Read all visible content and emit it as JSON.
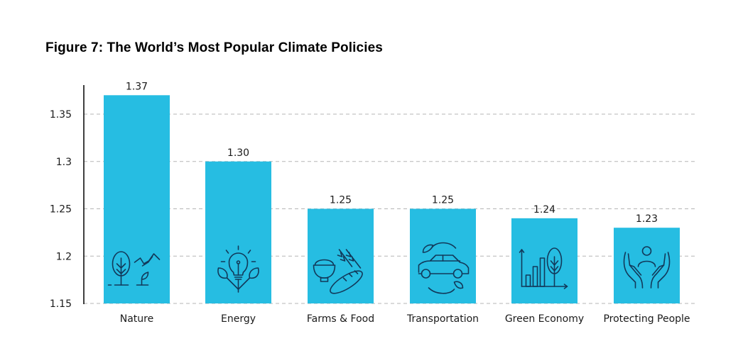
{
  "chart_data": {
    "type": "bar",
    "title": "Figure 7: The World’s Most Popular Climate Policies",
    "xlabel": "",
    "ylabel": "",
    "categories": [
      "Nature",
      "Energy",
      "Farms & Food",
      "Transportation",
      "Green Economy",
      "Protecting People"
    ],
    "values": [
      1.37,
      1.3,
      1.25,
      1.25,
      1.24,
      1.23
    ],
    "value_labels": [
      "1.37",
      "1.30",
      "1.25",
      "1.25",
      "1.24",
      "1.23"
    ],
    "icons": [
      "nature-tree-mountain-icon",
      "energy-lightbulb-leaves-icon",
      "farms-food-bowl-wheat-bread-icon",
      "transportation-car-leaves-icon",
      "green-economy-chart-tree-icon",
      "protecting-people-hands-person-icon"
    ],
    "ylim": [
      1.15,
      1.37
    ],
    "yticks": [
      1.15,
      1.2,
      1.25,
      1.3,
      1.35
    ],
    "ytick_labels": [
      "1.15",
      "1.2",
      "1.25",
      "1.3",
      "1.35"
    ],
    "grid": true,
    "grid_style": "dashed",
    "legend": "none",
    "colors": {
      "bar": "#26bde2",
      "icon": "#12395a",
      "grid": "#b5b5b5",
      "axis": "#000000"
    }
  }
}
